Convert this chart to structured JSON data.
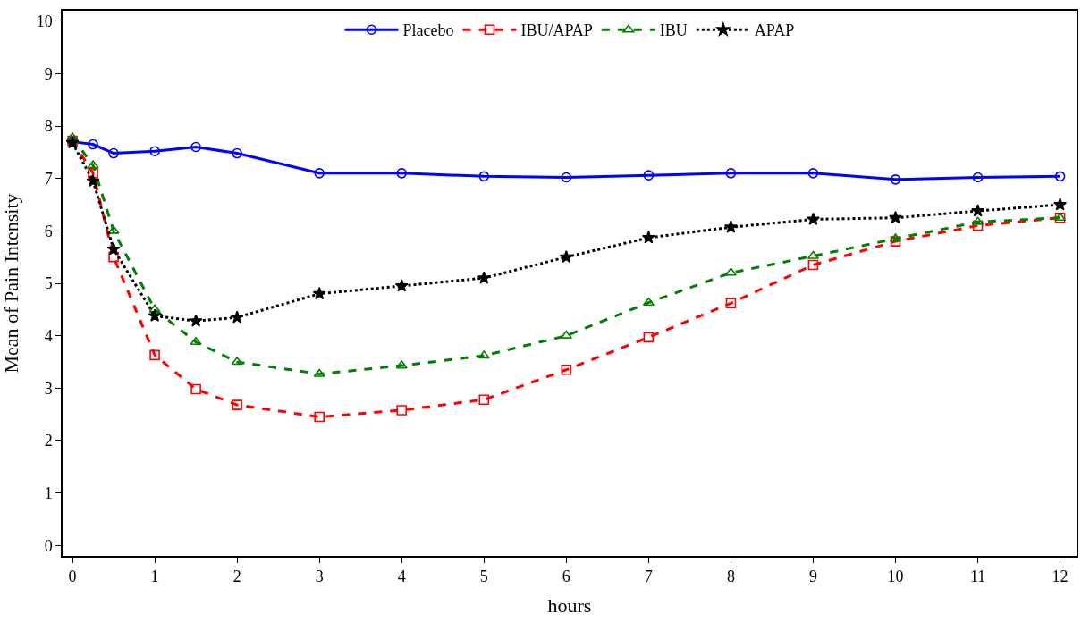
{
  "chart_data": {
    "type": "line",
    "xlabel": "hours",
    "ylabel": "Mean of Pain Intensity",
    "x": [
      0,
      0.25,
      0.5,
      1,
      1.5,
      2,
      3,
      4,
      5,
      6,
      7,
      8,
      9,
      10,
      11,
      12
    ],
    "series": [
      {
        "name": "Placebo",
        "color": "#0000ff",
        "marker": "circle",
        "line_style": "solid",
        "values": [
          7.7,
          7.65,
          7.48,
          7.52,
          7.6,
          7.48,
          7.1,
          7.1,
          7.04,
          7.02,
          7.06,
          7.1,
          7.1,
          6.98,
          7.02,
          7.04
        ]
      },
      {
        "name": "IBU/APAP",
        "color": "#ff0000",
        "marker": "square",
        "line_style": "dashed",
        "values": [
          7.72,
          7.1,
          5.5,
          3.63,
          2.98,
          2.68,
          2.45,
          2.58,
          2.78,
          3.35,
          3.97,
          4.62,
          5.35,
          5.8,
          6.1,
          6.25
        ]
      },
      {
        "name": "IBU",
        "color": "#008000",
        "marker": "triangle",
        "line_style": "dashed",
        "values": [
          7.78,
          7.25,
          6.0,
          4.5,
          3.88,
          3.5,
          3.27,
          3.43,
          3.62,
          4.0,
          4.63,
          5.2,
          5.52,
          5.85,
          6.17,
          6.25
        ]
      },
      {
        "name": "APAP",
        "color": "#000000",
        "marker": "star",
        "line_style": "dotted",
        "values": [
          7.68,
          6.95,
          5.65,
          4.38,
          4.28,
          4.35,
          4.8,
          4.95,
          5.1,
          5.5,
          5.87,
          6.07,
          6.22,
          6.25,
          6.38,
          6.5
        ]
      }
    ],
    "xlim": [
      -0.12,
      12.2
    ],
    "xticks": [
      0,
      1,
      2,
      3,
      4,
      5,
      6,
      7,
      8,
      9,
      10,
      11,
      12
    ],
    "ylim": [
      -0.2,
      10.2
    ],
    "yticks": [
      0,
      1,
      2,
      3,
      4,
      5,
      6,
      7,
      8,
      9,
      10
    ],
    "legend": "top"
  }
}
